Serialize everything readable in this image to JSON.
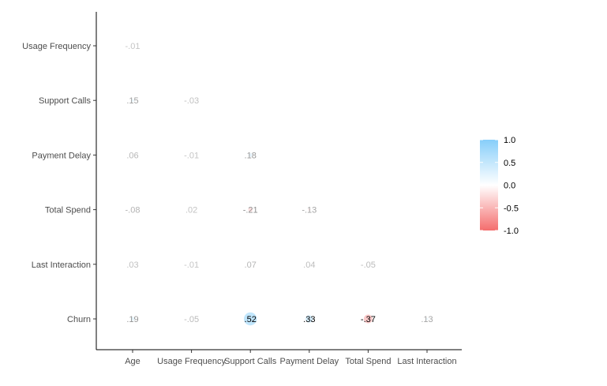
{
  "chart_data": {
    "type": "heatmap",
    "subtype": "lower-triangle correlation matrix with circle markers",
    "x_labels": [
      "Age",
      "Usage Frequency",
      "Support Calls",
      "Payment Delay",
      "Total Spend",
      "Last Interaction"
    ],
    "y_labels": [
      "Usage Frequency",
      "Support Calls",
      "Payment Delay",
      "Total Spend",
      "Last Interaction",
      "Churn"
    ],
    "cells": [
      {
        "row": "Usage Frequency",
        "col": "Age",
        "value": -0.01,
        "label": "-.01"
      },
      {
        "row": "Support Calls",
        "col": "Age",
        "value": 0.15,
        "label": ".15"
      },
      {
        "row": "Support Calls",
        "col": "Usage Frequency",
        "value": -0.03,
        "label": "-.03"
      },
      {
        "row": "Payment Delay",
        "col": "Age",
        "value": 0.06,
        "label": ".06"
      },
      {
        "row": "Payment Delay",
        "col": "Usage Frequency",
        "value": -0.01,
        "label": "-.01"
      },
      {
        "row": "Payment Delay",
        "col": "Support Calls",
        "value": 0.18,
        "label": ".18"
      },
      {
        "row": "Total Spend",
        "col": "Age",
        "value": -0.08,
        "label": "-.08"
      },
      {
        "row": "Total Spend",
        "col": "Usage Frequency",
        "value": 0.02,
        "label": ".02"
      },
      {
        "row": "Total Spend",
        "col": "Support Calls",
        "value": -0.21,
        "label": "-.21"
      },
      {
        "row": "Total Spend",
        "col": "Payment Delay",
        "value": -0.13,
        "label": "-.13"
      },
      {
        "row": "Last Interaction",
        "col": "Age",
        "value": 0.03,
        "label": ".03"
      },
      {
        "row": "Last Interaction",
        "col": "Usage Frequency",
        "value": -0.01,
        "label": "-.01"
      },
      {
        "row": "Last Interaction",
        "col": "Support Calls",
        "value": 0.07,
        "label": ".07"
      },
      {
        "row": "Last Interaction",
        "col": "Payment Delay",
        "value": 0.04,
        "label": ".04"
      },
      {
        "row": "Last Interaction",
        "col": "Total Spend",
        "value": -0.05,
        "label": "-.05"
      },
      {
        "row": "Churn",
        "col": "Age",
        "value": 0.19,
        "label": ".19"
      },
      {
        "row": "Churn",
        "col": "Usage Frequency",
        "value": -0.05,
        "label": "-.05"
      },
      {
        "row": "Churn",
        "col": "Support Calls",
        "value": 0.52,
        "label": ".52"
      },
      {
        "row": "Churn",
        "col": "Payment Delay",
        "value": 0.33,
        "label": ".33"
      },
      {
        "row": "Churn",
        "col": "Total Spend",
        "value": -0.37,
        "label": "-.37"
      },
      {
        "row": "Churn",
        "col": "Last Interaction",
        "value": 0.13,
        "label": ".13"
      }
    ],
    "color_scale": {
      "min": -1.0,
      "max": 1.0,
      "low_color": "#f46d6d",
      "mid_color": "#ffffff",
      "high_color": "#87cefa",
      "ticks": [
        1.0,
        0.5,
        0.0,
        -0.5,
        -1.0
      ],
      "tick_labels": [
        "1.0",
        "0.5",
        "0.0",
        "-0.5",
        "-1.0"
      ]
    },
    "legend_position": "right",
    "grid": false
  }
}
